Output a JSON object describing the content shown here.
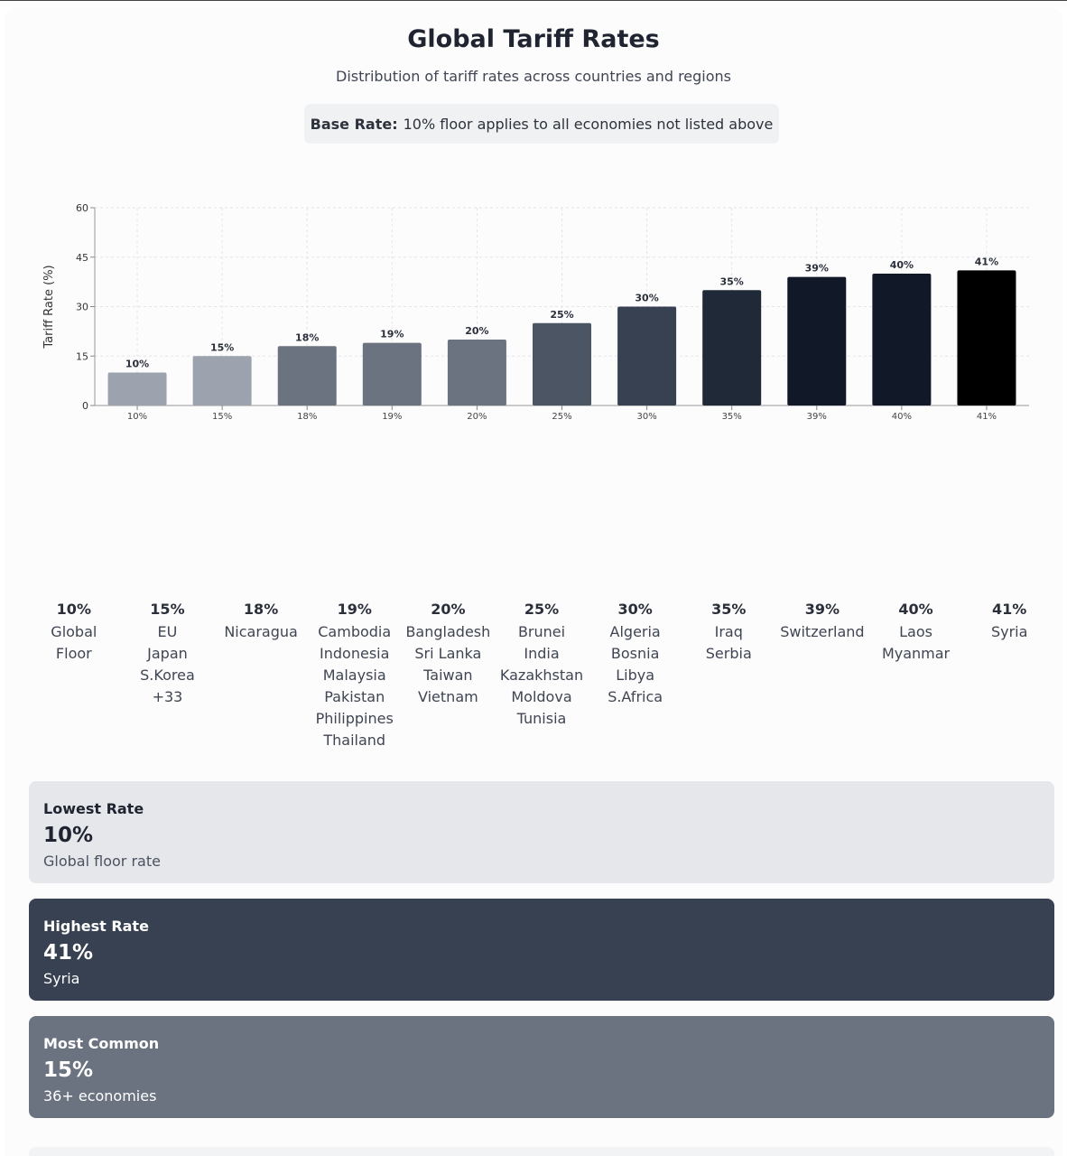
{
  "header": {
    "title": "Global Tariff Rates",
    "subtitle": "Distribution of tariff rates across countries and regions",
    "base_label": "Base Rate:",
    "base_text": "10% floor applies to all economies not listed above"
  },
  "chart_data": {
    "type": "bar",
    "ylabel": "Tariff Rate (%)",
    "xlabel": "",
    "ylim": [
      0,
      60
    ],
    "yticks": [
      0,
      15,
      30,
      45,
      60
    ],
    "grid": true,
    "categories": [
      "10%",
      "15%",
      "18%",
      "19%",
      "20%",
      "25%",
      "30%",
      "35%",
      "39%",
      "40%",
      "41%"
    ],
    "values": [
      10,
      15,
      18,
      19,
      20,
      25,
      30,
      35,
      39,
      40,
      41
    ],
    "data_labels": [
      "10%",
      "15%",
      "18%",
      "19%",
      "20%",
      "25%",
      "30%",
      "35%",
      "39%",
      "40%",
      "41%"
    ],
    "colors": [
      "#9ca3af",
      "#9ca3af",
      "#6b7280",
      "#6b7280",
      "#6b7280",
      "#4b5563",
      "#374151",
      "#1f2937",
      "#111827",
      "#111827",
      "#000000"
    ]
  },
  "groups": [
    {
      "rate": "10%",
      "names": [
        "Global",
        "Floor"
      ]
    },
    {
      "rate": "15%",
      "names": [
        "EU",
        "Japan",
        "S.Korea",
        "+33"
      ]
    },
    {
      "rate": "18%",
      "names": [
        "Nicaragua"
      ]
    },
    {
      "rate": "19%",
      "names": [
        "Cambodia",
        "Indonesia",
        "Malaysia",
        "Pakistan",
        "Philippines",
        "Thailand"
      ]
    },
    {
      "rate": "20%",
      "names": [
        "Bangladesh",
        "Sri Lanka",
        "Taiwan",
        "Vietnam"
      ]
    },
    {
      "rate": "25%",
      "names": [
        "Brunei",
        "India",
        "Kazakhstan",
        "Moldova",
        "Tunisia"
      ]
    },
    {
      "rate": "30%",
      "names": [
        "Algeria",
        "Bosnia",
        "Libya",
        "S.Africa"
      ]
    },
    {
      "rate": "35%",
      "names": [
        "Iraq",
        "Serbia"
      ]
    },
    {
      "rate": "39%",
      "names": [
        "Switzerland"
      ]
    },
    {
      "rate": "40%",
      "names": [
        "Laos",
        "Myanmar"
      ]
    },
    {
      "rate": "41%",
      "names": [
        "Syria"
      ]
    }
  ],
  "stats": {
    "lowest": {
      "label": "Lowest Rate",
      "value": "10%",
      "desc": "Global floor rate"
    },
    "highest": {
      "label": "Highest Rate",
      "value": "41%",
      "desc": "Syria"
    },
    "common": {
      "label": "Most Common",
      "value": "15%",
      "desc": "36+ economies"
    }
  }
}
